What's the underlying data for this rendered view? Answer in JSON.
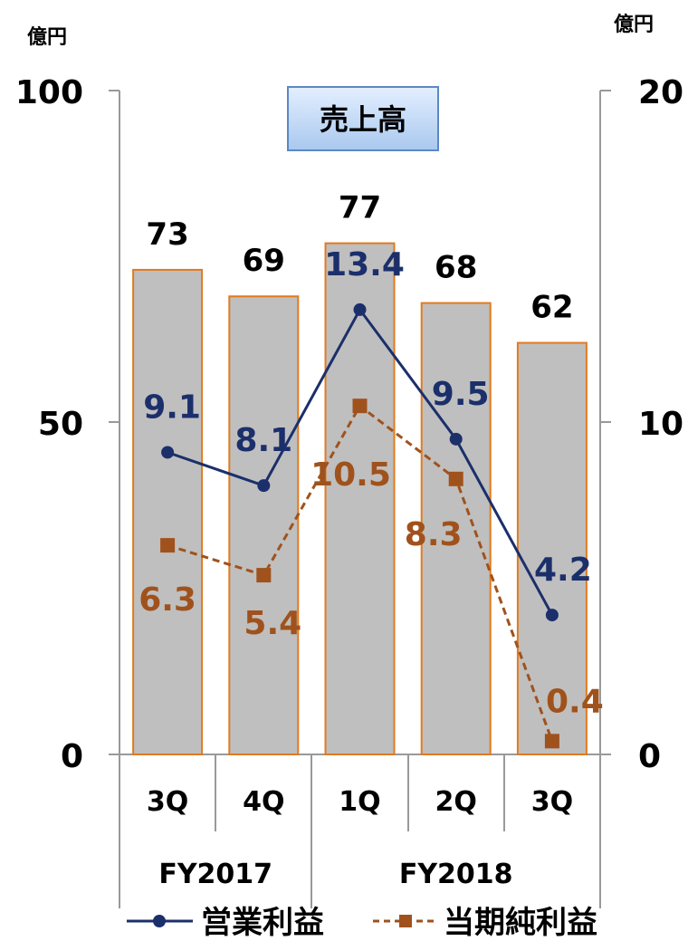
{
  "chart_data": {
    "type": "bar",
    "title": "売上高",
    "left_unit": "億円",
    "right_unit": "億円",
    "left_axis": {
      "ylim": [
        0,
        100
      ],
      "ticks": [
        "0",
        "50",
        "100"
      ]
    },
    "right_axis": {
      "ylim": [
        0,
        20
      ],
      "ticks": [
        "0",
        "10",
        "20"
      ]
    },
    "categories": [
      "3Q",
      "4Q",
      "1Q",
      "2Q",
      "3Q"
    ],
    "groups": [
      {
        "label": "FY2017",
        "span": 2
      },
      {
        "label": "FY2018",
        "span": 3
      }
    ],
    "bars": {
      "name": "売上高",
      "axis": "left",
      "values": [
        73,
        69,
        77,
        68,
        62
      ],
      "labels": [
        "73",
        "69",
        "77",
        "68",
        "62"
      ],
      "fill": "#bfbfbf",
      "stroke": "#e07b20"
    },
    "series": [
      {
        "name": "営業利益",
        "axis": "right",
        "values": [
          9.1,
          8.1,
          13.4,
          9.5,
          4.2
        ],
        "labels": [
          "9.1",
          "8.1",
          "13.4",
          "9.5",
          "4.2"
        ],
        "color": "#1b2f6b",
        "marker": "circle",
        "line": "solid"
      },
      {
        "name": "当期純利益",
        "axis": "right",
        "values": [
          6.3,
          5.4,
          10.5,
          8.3,
          0.4
        ],
        "labels": [
          "6.3",
          "5.4",
          "10.5",
          "8.3",
          "0.4"
        ],
        "color": "#a0521c",
        "marker": "square",
        "line": "dashed"
      }
    ],
    "legend": "bottom"
  }
}
